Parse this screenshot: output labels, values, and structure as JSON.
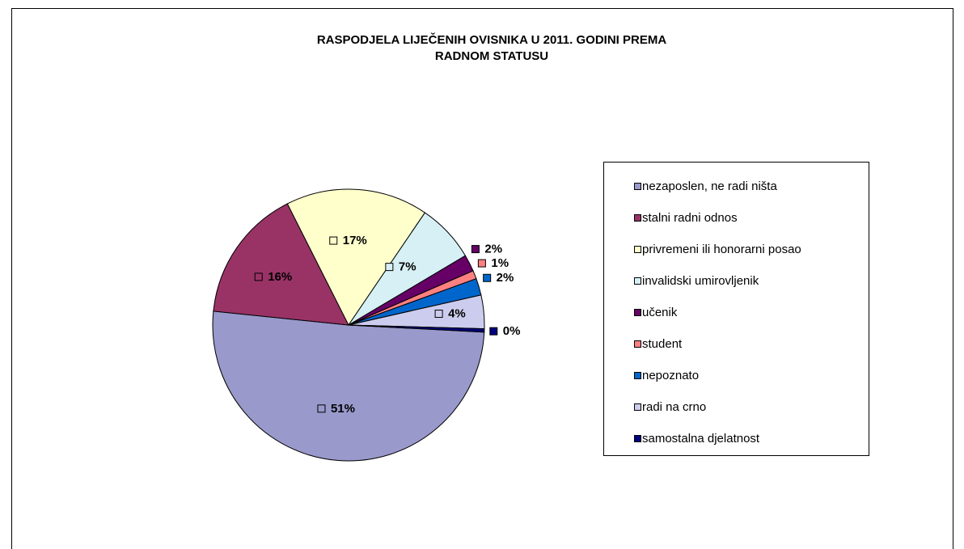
{
  "chart_data": {
    "type": "pie",
    "title": [
      "RASPODJELA LIJEČENIH OVISNIKA U 2011. GODINI PREMA",
      "RADNOM STATUSU"
    ],
    "categories": [
      "nezaposlen, ne radi ništa",
      "stalni radni odnos",
      "privremeni ili honorarni posao",
      "invalidski umirovljenik",
      "učenik",
      "student",
      "nepoznato",
      "radi na crno",
      "samostalna djelatnost"
    ],
    "values": [
      51,
      16,
      17,
      7,
      2,
      1,
      2,
      4,
      0.4
    ],
    "value_labels": [
      "51%",
      "16%",
      "17%",
      "7%",
      "2%",
      "1%",
      "2%",
      "4%",
      "0%"
    ],
    "colors": [
      "#9999cc",
      "#993366",
      "#ffffcc",
      "#d6f0f5",
      "#660066",
      "#ff8080",
      "#0066cc",
      "#ccccee",
      "#000080"
    ],
    "legend": "right"
  }
}
